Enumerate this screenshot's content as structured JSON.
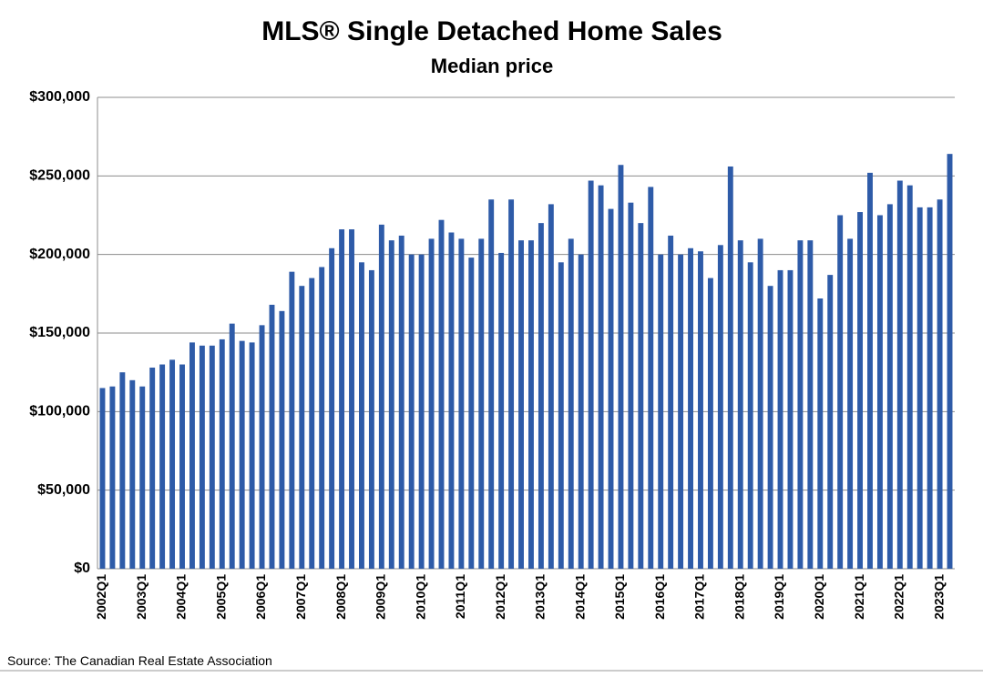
{
  "chart_data": {
    "type": "bar",
    "title": "MLS® Single Detached Home Sales",
    "subtitle": "Median price",
    "source": "Source: The Canadian Real Estate Association",
    "categories": [
      "2002Q1",
      null,
      null,
      null,
      "2003Q1",
      null,
      null,
      null,
      "2004Q1",
      null,
      null,
      null,
      "2005Q1",
      null,
      null,
      null,
      "2006Q1",
      null,
      null,
      null,
      "2007Q1",
      null,
      null,
      null,
      "2008Q1",
      null,
      null,
      null,
      "2009Q1",
      null,
      null,
      null,
      "2010Q1",
      null,
      null,
      null,
      "2011Q1",
      null,
      null,
      null,
      "2012Q1",
      null,
      null,
      null,
      "2013Q1",
      null,
      null,
      null,
      "2014Q1",
      null,
      null,
      null,
      "2015Q1",
      null,
      null,
      null,
      "2016Q1",
      null,
      null,
      null,
      "2017Q1",
      null,
      null,
      null,
      "2018Q1",
      null,
      null,
      null,
      "2019Q1",
      null,
      null,
      null,
      "2020Q1",
      null,
      null,
      null,
      "2021Q1",
      null,
      null,
      null,
      "2022Q1",
      null,
      null,
      null,
      "2023Q1",
      null
    ],
    "values": [
      115000,
      116000,
      125000,
      120000,
      116000,
      128000,
      130000,
      133000,
      130000,
      144000,
      142000,
      142000,
      146000,
      156000,
      145000,
      144000,
      155000,
      168000,
      164000,
      189000,
      180000,
      185000,
      192000,
      204000,
      216000,
      216000,
      195000,
      190000,
      219000,
      209000,
      212000,
      200000,
      200000,
      210000,
      222000,
      214000,
      210000,
      198000,
      210000,
      235000,
      201000,
      235000,
      209000,
      209000,
      220000,
      232000,
      195000,
      210000,
      200000,
      247000,
      244000,
      229000,
      257000,
      233000,
      220000,
      243000,
      200000,
      212000,
      200000,
      204000,
      202000,
      185000,
      206000,
      256000,
      209000,
      195000,
      210000,
      180000,
      190000,
      190000,
      209000,
      209000,
      172000,
      187000,
      225000,
      210000,
      227000,
      252000,
      225000,
      232000,
      247000,
      244000,
      230000,
      230000,
      235000,
      264000
    ],
    "color": "#2e5ba8",
    "ylim": [
      0,
      300000
    ],
    "yticks": [
      {
        "value": 0,
        "label": "$0"
      },
      {
        "value": 50000,
        "label": "$50,000"
      },
      {
        "value": 100000,
        "label": "$100,000"
      },
      {
        "value": 150000,
        "label": "$150,000"
      },
      {
        "value": 200000,
        "label": "$200,000"
      },
      {
        "value": 250000,
        "label": "$250,000"
      },
      {
        "value": 300000,
        "label": "$300,000"
      }
    ],
    "grid": true
  }
}
